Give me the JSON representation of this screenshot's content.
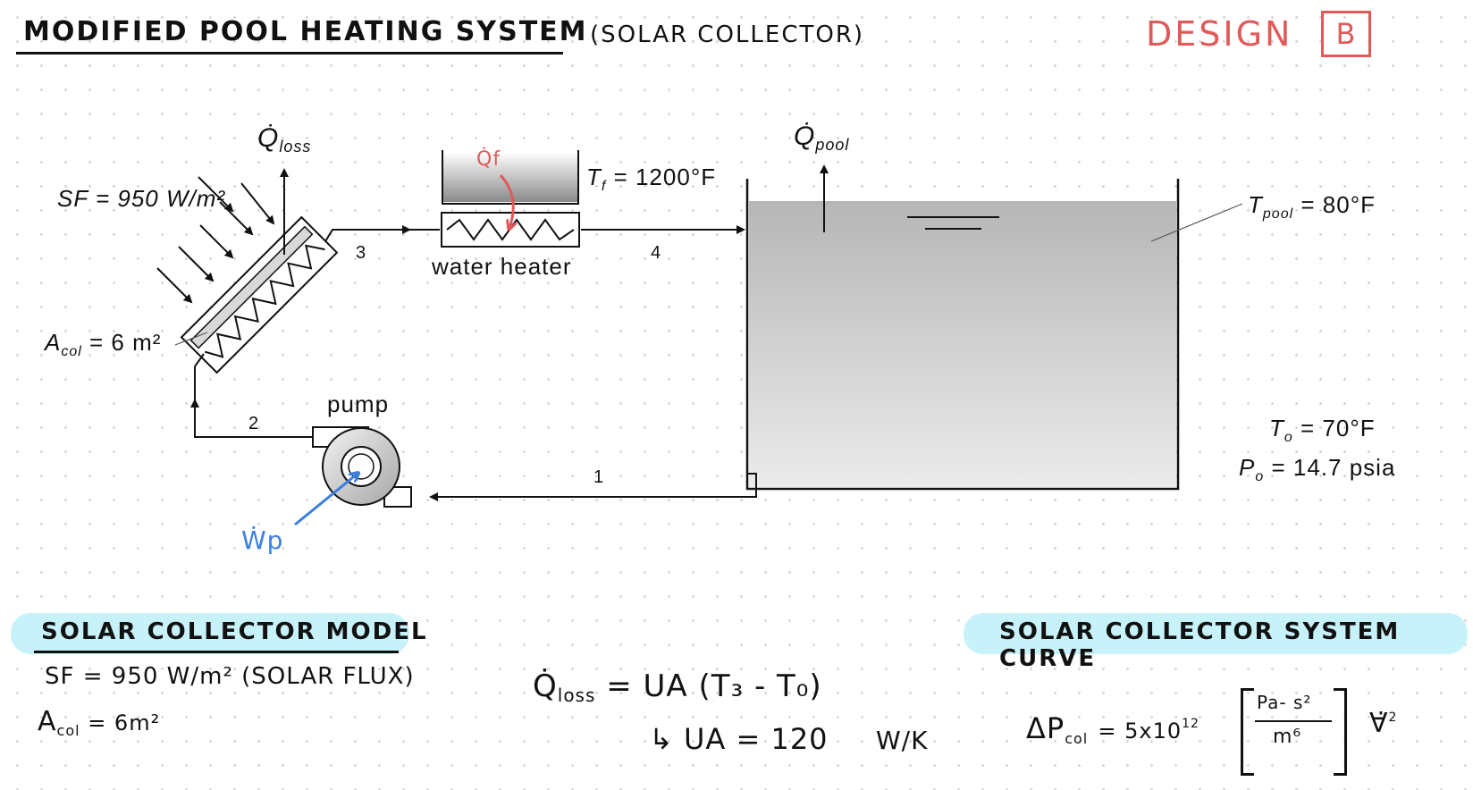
{
  "header": {
    "title": "MODIFIED POOL HEATING SYSTEM",
    "subtitle": "(SOLAR COLLECTOR)",
    "design_label": "DESIGN",
    "design_letter": "B"
  },
  "diagram": {
    "q_loss_label": "Q̇",
    "q_loss_sub": "loss",
    "q_pool_label": "Q̇",
    "q_pool_sub": "pool",
    "qf_label": "Q̇f",
    "sf_label": "SF = 950 W/m²",
    "acol_label": "A",
    "acol_sub": "col",
    "acol_value": " = 6 m²",
    "tf_label": "T",
    "tf_sub": "f",
    "tf_value": " = 1200°F",
    "water_heater_label": "water heater",
    "pump_label": "pump",
    "tpool_label": "T",
    "tpool_sub": "pool",
    "tpool_value": " = 80°F",
    "to_label": "T",
    "to_sub": "o",
    "to_value": " = 70°F",
    "po_label": "P",
    "po_sub": "o",
    "po_value": " = 14.7 psia",
    "wp_label": "Ẇp",
    "state_1": "1",
    "state_2": "2",
    "state_3": "3",
    "state_4": "4"
  },
  "colors": {
    "accent_red": "#e05a5a",
    "accent_blue": "#3b7fe0",
    "highlight_cyan": "#c8f2f9"
  },
  "model_section": {
    "title": "SOLAR COLLECTOR MODEL",
    "line1": "SF = 950 W/m² (SOLAR FLUX)",
    "line2_a": "A",
    "line2_sub": "col",
    "line2_b": " = 6m²"
  },
  "loss_eq": {
    "q": "Q̇",
    "q_sub": "loss",
    "rhs": "= UA (T₃ - T₀)",
    "arrow": "↳",
    "ua": "UA = 120",
    "units": "W/K"
  },
  "curve_section": {
    "title": "SOLAR COLLECTOR SYSTEM CURVE",
    "lhs": "ΔP",
    "lhs_sub": "col",
    "eq": "= 5x10",
    "exp": "12",
    "num": "Pa- s²",
    "den": "m⁶",
    "vol": "∀̇",
    "vol_exp": "2"
  }
}
